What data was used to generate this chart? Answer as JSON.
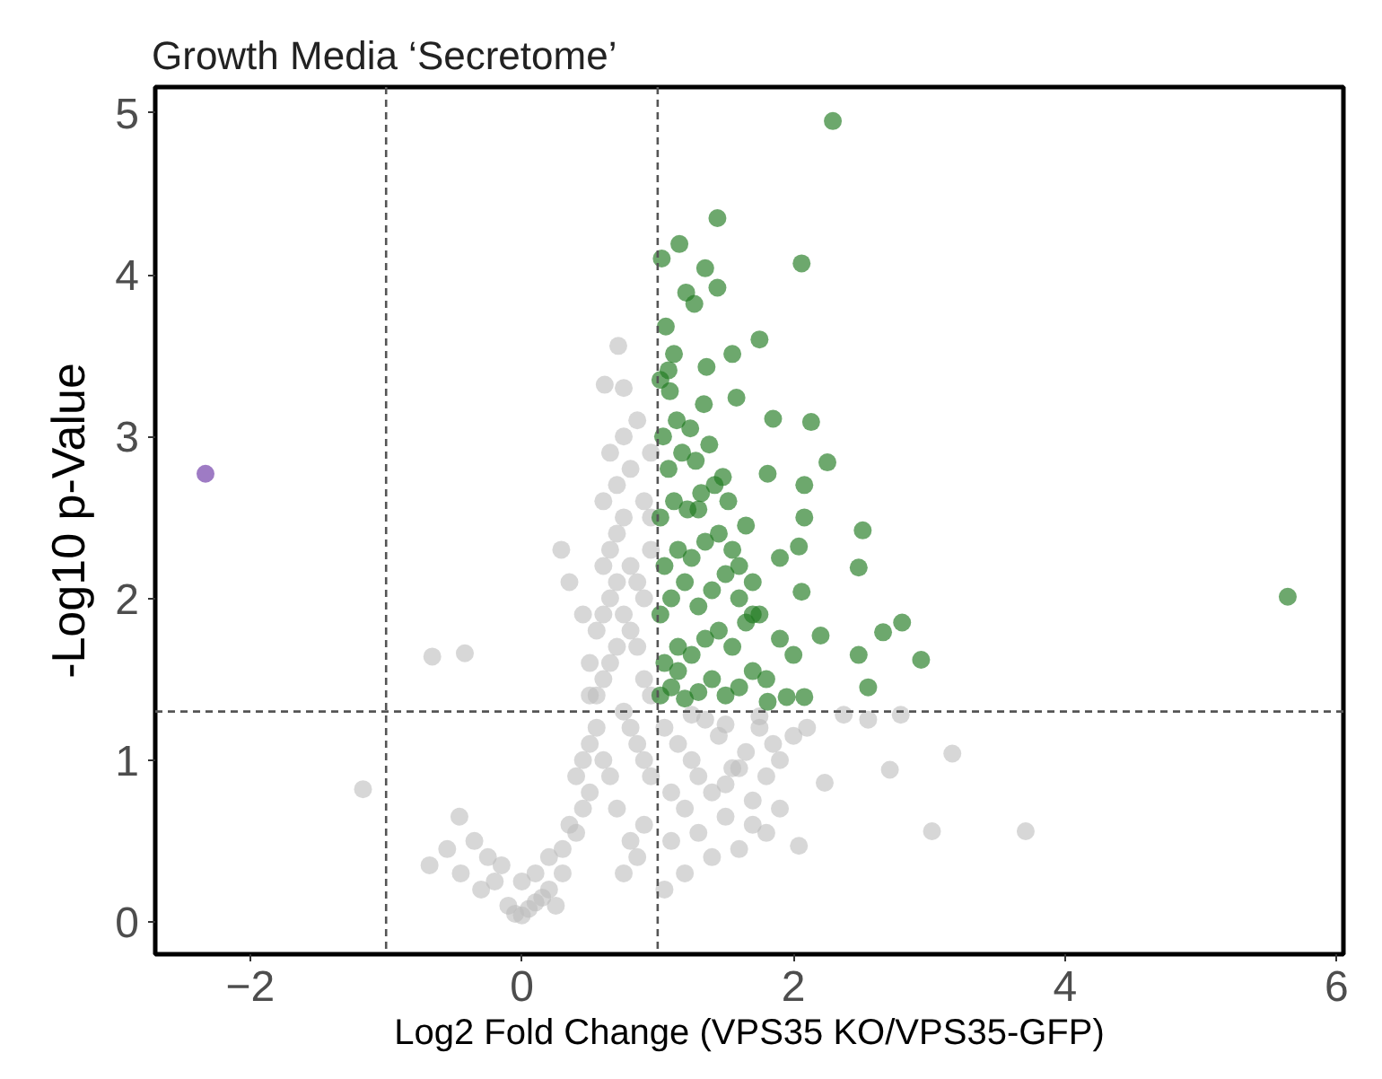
{
  "chart_data": {
    "type": "scatter",
    "title": "Growth Media ‘Secretome’",
    "xlabel": "Log2 Fold Change (VPS35 KO/VPS35-GFP)",
    "ylabel": "-Log10 p-Value",
    "xlim": [
      -2.7,
      6.05
    ],
    "ylim": [
      -0.2,
      5.16
    ],
    "xticks": [
      -2,
      0,
      2,
      4,
      6
    ],
    "yticks": [
      0,
      1,
      2,
      3,
      4,
      5
    ],
    "grid": false,
    "marker": "circle",
    "ref_lines": [
      {
        "axis": "x",
        "value": -1,
        "color": "#555555",
        "line_style": "dashed"
      },
      {
        "axis": "x",
        "value": 1,
        "color": "#555555",
        "line_style": "dashed"
      },
      {
        "axis": "y",
        "value": 1.3,
        "color": "#555555",
        "line_style": "dashed"
      }
    ],
    "series": [
      {
        "color": "#bdbdbd",
        "x": [
          -0.66,
          -0.42,
          -1.17,
          -0.68,
          -0.46,
          -0.55,
          -0.45,
          -0.3,
          -0.2,
          -0.1,
          -0.05,
          0.0,
          0.05,
          0.1,
          0.15,
          0.2,
          0.25,
          0.3,
          -0.35,
          -0.25,
          -0.15,
          0.0,
          0.1,
          0.2,
          0.3,
          0.35,
          0.4,
          0.45,
          0.5,
          0.4,
          0.45,
          0.5,
          0.55,
          0.6,
          0.65,
          0.7,
          0.55,
          0.6,
          0.65,
          0.7,
          0.75,
          0.8,
          0.85,
          0.9,
          0.95,
          0.5,
          0.55,
          0.6,
          0.65,
          0.7,
          0.75,
          0.8,
          0.85,
          0.9,
          0.95,
          0.6,
          0.65,
          0.7,
          0.75,
          0.8,
          0.85,
          0.9,
          0.95,
          0.6,
          0.7,
          0.8,
          0.9,
          0.95,
          0.65,
          0.75,
          0.85,
          0.95,
          0.71,
          0.61,
          0.29,
          0.35,
          0.5,
          0.8,
          0.9,
          0.75,
          0.85,
          1.05,
          1.15,
          1.25,
          1.35,
          1.45,
          1.55,
          1.65,
          1.75,
          1.85,
          1.1,
          1.2,
          1.3,
          1.4,
          1.5,
          1.6,
          1.7,
          1.8,
          1.9,
          2.0,
          1.1,
          1.3,
          1.5,
          1.7,
          1.9,
          2.1,
          1.2,
          1.4,
          1.6,
          1.8,
          1.25,
          1.5,
          1.75,
          3.17,
          3.02,
          3.71,
          2.23,
          2.71,
          2.79,
          2.37,
          2.04,
          2.55,
          0.75,
          0.45,
          1.05
        ],
        "values": [
          1.64,
          1.66,
          0.82,
          0.35,
          0.65,
          0.45,
          0.3,
          0.2,
          0.25,
          0.1,
          0.05,
          0.04,
          0.08,
          0.12,
          0.15,
          0.2,
          0.1,
          0.3,
          0.5,
          0.4,
          0.35,
          0.25,
          0.3,
          0.4,
          0.45,
          0.6,
          0.55,
          0.7,
          0.8,
          0.9,
          1.0,
          1.1,
          1.2,
          1.0,
          0.9,
          0.7,
          1.4,
          1.5,
          1.6,
          1.7,
          1.3,
          1.2,
          1.1,
          1.0,
          0.9,
          1.6,
          1.8,
          1.9,
          2.0,
          2.1,
          1.9,
          1.8,
          1.7,
          1.5,
          1.4,
          2.2,
          2.3,
          2.4,
          2.5,
          2.2,
          2.1,
          2.0,
          2.3,
          2.6,
          2.7,
          2.8,
          2.6,
          2.5,
          2.9,
          3.0,
          3.1,
          2.9,
          3.56,
          3.32,
          2.3,
          2.1,
          1.4,
          0.5,
          0.6,
          0.3,
          0.4,
          1.2,
          1.1,
          1.0,
          1.25,
          1.15,
          0.95,
          1.05,
          1.2,
          1.1,
          0.8,
          0.7,
          0.9,
          0.8,
          0.85,
          0.95,
          0.75,
          0.9,
          1.0,
          1.15,
          0.5,
          0.55,
          0.65,
          0.6,
          0.7,
          1.2,
          0.3,
          0.4,
          0.45,
          0.55,
          1.28,
          1.22,
          1.27,
          1.04,
          0.56,
          0.56,
          0.86,
          0.94,
          1.28,
          1.28,
          0.47,
          1.25,
          3.3,
          1.9,
          0.2
        ]
      },
      {
        "color": "#1f7a1f",
        "x": [
          2.29,
          1.44,
          1.16,
          1.03,
          2.06,
          1.35,
          1.44,
          1.21,
          1.27,
          1.75,
          1.06,
          1.12,
          1.55,
          1.36,
          1.08,
          1.09,
          1.58,
          1.85,
          2.13,
          2.25,
          1.81,
          2.08,
          2.51,
          2.08,
          2.04,
          2.48,
          2.06,
          2.2,
          2.66,
          2.48,
          2.55,
          2.8,
          2.94,
          5.64,
          1.95,
          2.08,
          1.81,
          1.02,
          1.1,
          1.2,
          1.3,
          1.4,
          1.5,
          1.6,
          1.7,
          1.8,
          1.05,
          1.15,
          1.25,
          1.35,
          1.45,
          1.55,
          1.65,
          1.75,
          1.9,
          1.02,
          1.1,
          1.2,
          1.3,
          1.4,
          1.5,
          1.6,
          1.7,
          1.05,
          1.15,
          1.25,
          1.35,
          1.45,
          1.55,
          1.65,
          1.02,
          1.12,
          1.22,
          1.32,
          1.42,
          1.52,
          1.08,
          1.18,
          1.28,
          1.38,
          1.48,
          1.04,
          1.14,
          1.24,
          1.34,
          1.6,
          1.7,
          1.9,
          2.0,
          1.02,
          1.3,
          1.15
        ],
        "values": [
          4.95,
          4.35,
          4.19,
          4.1,
          4.07,
          4.04,
          3.92,
          3.89,
          3.82,
          3.6,
          3.68,
          3.51,
          3.51,
          3.43,
          3.41,
          3.28,
          3.24,
          3.11,
          3.09,
          2.84,
          2.77,
          2.7,
          2.42,
          2.5,
          2.32,
          2.19,
          2.04,
          1.77,
          1.79,
          1.65,
          1.45,
          1.85,
          1.62,
          2.01,
          1.39,
          1.39,
          1.36,
          1.4,
          1.45,
          1.38,
          1.42,
          1.5,
          1.4,
          1.45,
          1.55,
          1.5,
          1.6,
          1.7,
          1.65,
          1.75,
          1.8,
          1.7,
          1.85,
          1.9,
          1.75,
          1.9,
          2.0,
          2.1,
          1.95,
          2.05,
          2.15,
          2.0,
          2.1,
          2.2,
          2.3,
          2.25,
          2.35,
          2.4,
          2.3,
          2.45,
          2.5,
          2.6,
          2.55,
          2.65,
          2.7,
          2.6,
          2.8,
          2.9,
          2.85,
          2.95,
          2.75,
          3.0,
          3.1,
          3.05,
          3.2,
          2.2,
          1.9,
          2.25,
          1.65,
          3.35,
          2.55,
          1.55
        ]
      },
      {
        "color": "#9e7bc4",
        "x": [
          -2.33
        ],
        "values": [
          2.77
        ]
      }
    ]
  }
}
